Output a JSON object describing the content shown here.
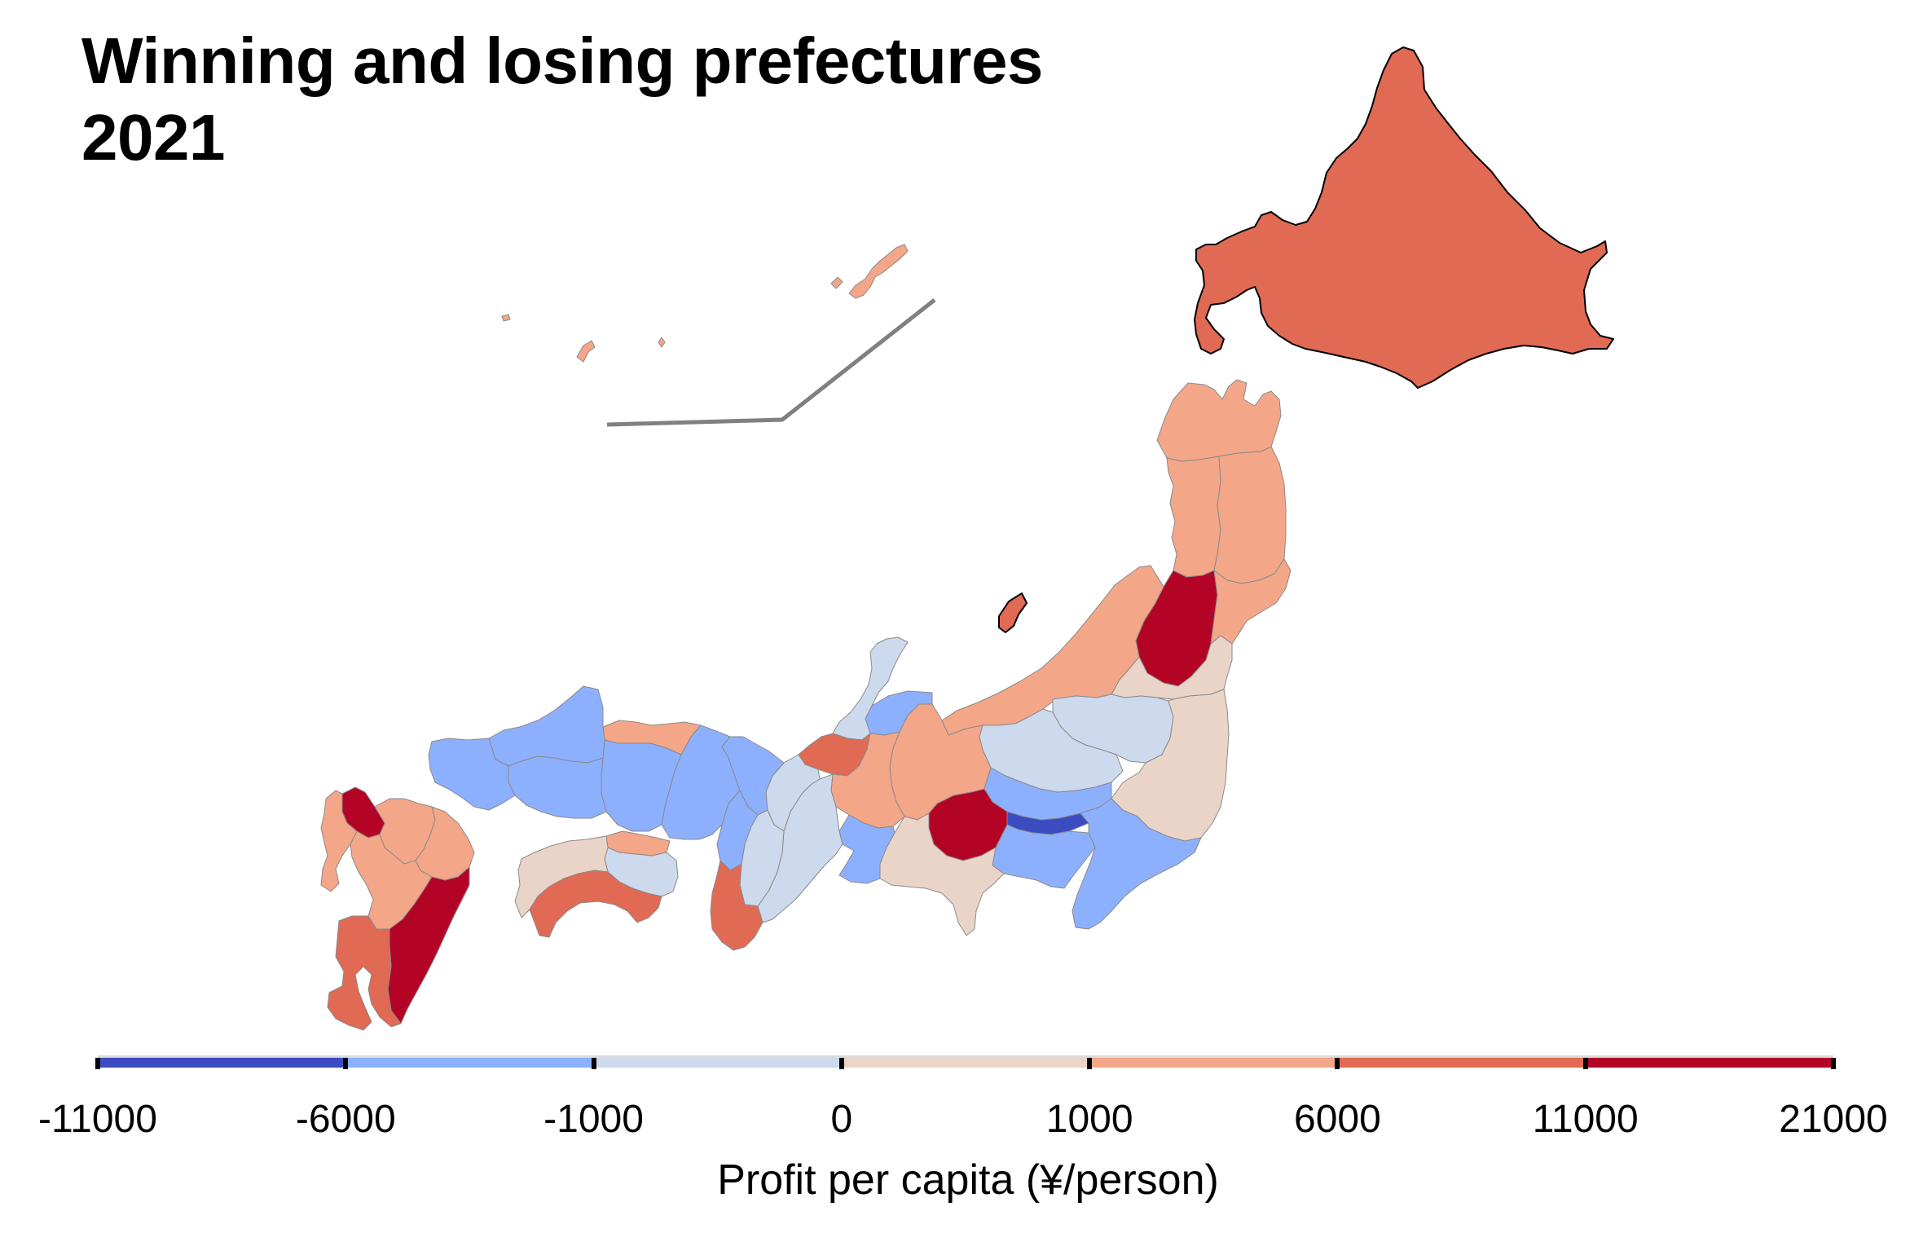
{
  "title": {
    "line1": "Winning and losing prefectures",
    "line2": "2021"
  },
  "colorbar": {
    "label": "Profit per capita (¥/person)",
    "ticks": [
      "-11000",
      "-6000",
      "-1000",
      "0",
      "1000",
      "6000",
      "11000",
      "21000"
    ],
    "bins": [
      {
        "from": -11000,
        "to": -6000,
        "color": "#3b4cc0"
      },
      {
        "from": -6000,
        "to": -1000,
        "color": "#8db0fe"
      },
      {
        "from": -1000,
        "to": 0,
        "color": "#cdd9ec"
      },
      {
        "from": 0,
        "to": 1000,
        "color": "#ead4c8"
      },
      {
        "from": 1000,
        "to": 6000,
        "color": "#f4a688"
      },
      {
        "from": 6000,
        "to": 11000,
        "color": "#e06a53"
      },
      {
        "from": 11000,
        "to": 21000,
        "color": "#b40426"
      }
    ]
  },
  "prefectures": [
    {
      "name": "Hokkaido",
      "bin": 5
    },
    {
      "name": "Aomori",
      "bin": 4
    },
    {
      "name": "Iwate",
      "bin": 4
    },
    {
      "name": "Akita",
      "bin": 4
    },
    {
      "name": "Miyagi",
      "bin": 4
    },
    {
      "name": "Yamagata",
      "bin": 6
    },
    {
      "name": "Fukushima",
      "bin": 3
    },
    {
      "name": "Niigata",
      "bin": 4
    },
    {
      "name": "Sado",
      "bin": 5
    },
    {
      "name": "Tochigi",
      "bin": 2
    },
    {
      "name": "Gunma",
      "bin": 2
    },
    {
      "name": "Ibaraki",
      "bin": 3
    },
    {
      "name": "Saitama",
      "bin": 1
    },
    {
      "name": "Tokyo",
      "bin": 0
    },
    {
      "name": "Chiba",
      "bin": 1
    },
    {
      "name": "Kanagawa",
      "bin": 1
    },
    {
      "name": "Yamanashi",
      "bin": 6
    },
    {
      "name": "Nagano",
      "bin": 4
    },
    {
      "name": "Shizuoka",
      "bin": 3
    },
    {
      "name": "Toyama",
      "bin": 1
    },
    {
      "name": "Ishikawa",
      "bin": 2
    },
    {
      "name": "Fukui",
      "bin": 5
    },
    {
      "name": "Gifu",
      "bin": 4
    },
    {
      "name": "Aichi",
      "bin": 1
    },
    {
      "name": "Mie",
      "bin": 2
    },
    {
      "name": "Shiga",
      "bin": 2
    },
    {
      "name": "Kyoto",
      "bin": 1
    },
    {
      "name": "Osaka",
      "bin": 1
    },
    {
      "name": "Hyogo",
      "bin": 1
    },
    {
      "name": "Nara",
      "bin": 2
    },
    {
      "name": "Wakayama",
      "bin": 5
    },
    {
      "name": "Tottori",
      "bin": 4
    },
    {
      "name": "Okayama",
      "bin": 1
    },
    {
      "name": "Shimane",
      "bin": 1
    },
    {
      "name": "Hiroshima",
      "bin": 1
    },
    {
      "name": "Yamaguchi",
      "bin": 1
    },
    {
      "name": "Kagawa",
      "bin": 4
    },
    {
      "name": "Tokushima",
      "bin": 2
    },
    {
      "name": "Ehime",
      "bin": 3
    },
    {
      "name": "Kochi",
      "bin": 5
    },
    {
      "name": "Fukuoka",
      "bin": 4
    },
    {
      "name": "Saga",
      "bin": 6
    },
    {
      "name": "Nagasaki",
      "bin": 4
    },
    {
      "name": "Oita",
      "bin": 4
    },
    {
      "name": "Kumamoto",
      "bin": 4
    },
    {
      "name": "Miyazaki",
      "bin": 6
    },
    {
      "name": "Kagoshima",
      "bin": 5
    },
    {
      "name": "Okinawa",
      "bin": 4
    }
  ]
}
